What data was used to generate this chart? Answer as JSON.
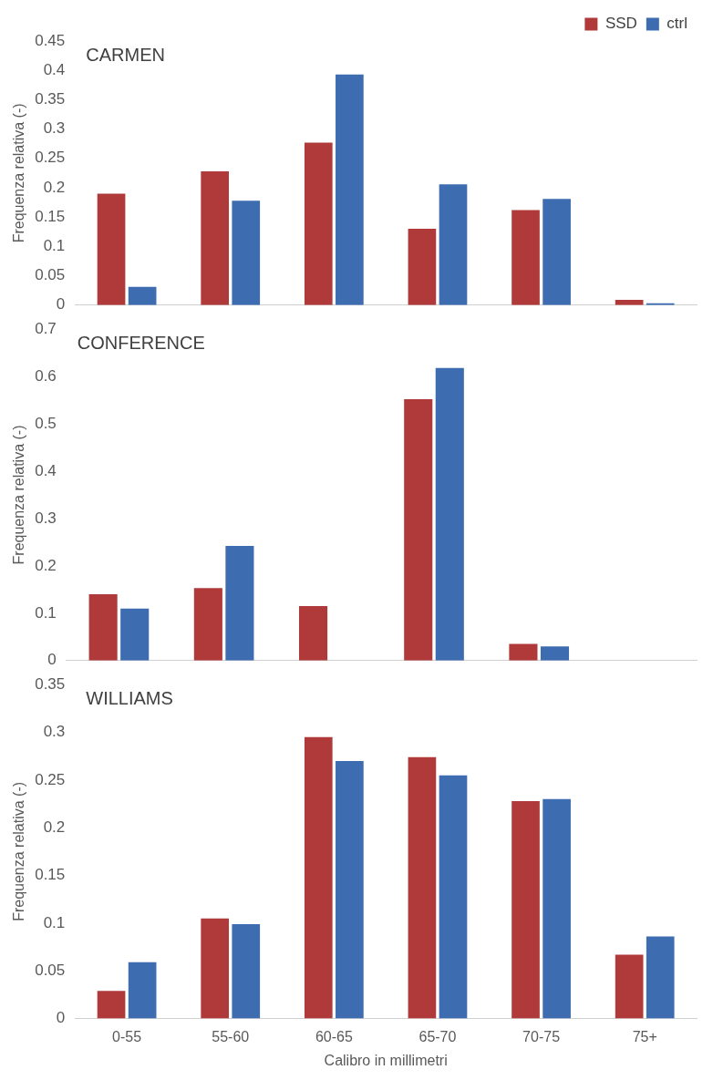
{
  "chart_data": [
    {
      "type": "bar",
      "title": "CARMEN",
      "categories": [
        null,
        null,
        null,
        null,
        null,
        null
      ],
      "series": [
        {
          "name": "SSD",
          "color": "#b03a3a",
          "values": [
            0.19,
            0.228,
            0.277,
            0.13,
            0.162,
            0.009
          ]
        },
        {
          "name": "ctrl",
          "color": "#3d6db0",
          "values": [
            0.031,
            0.178,
            0.393,
            0.206,
            0.181,
            0.003
          ]
        }
      ],
      "ylabel": "Frequenza relativa (-)",
      "ylim": [
        0,
        0.45
      ],
      "yticks": [
        0,
        0.05,
        0.1,
        0.15,
        0.2,
        0.25,
        0.3,
        0.35,
        0.4,
        0.45
      ],
      "legend": "top right",
      "tick_labels": "y"
    },
    {
      "type": "bar",
      "title": "CONFERENCE",
      "categories": [
        null,
        null,
        null,
        null,
        null,
        null
      ],
      "series": [
        {
          "color": "#b03a3a",
          "values": [
            0.14,
            0.153,
            0.115,
            0.552,
            0.035,
            0
          ]
        },
        {
          "color": "#3d6db0",
          "values": [
            0.11,
            0.242,
            0,
            0.618,
            0.03,
            0
          ]
        }
      ],
      "ylabel": "Frequenza relativa (-)",
      "ylim": [
        0,
        0.7
      ],
      "yticks": [
        0,
        0.1,
        0.2,
        0.3,
        0.4,
        0.5,
        0.6,
        0.7
      ],
      "tick_labels": "y"
    },
    {
      "type": "bar",
      "title": "WILLIAMS",
      "categories": [
        "0-55",
        "55-60",
        "60-65",
        "65-70",
        "70-75",
        "75+"
      ],
      "series": [
        {
          "color": "#b03a3a",
          "values": [
            0.029,
            0.105,
            0.295,
            0.274,
            0.228,
            0.067
          ]
        },
        {
          "color": "#3d6db0",
          "values": [
            0.059,
            0.099,
            0.27,
            0.255,
            0.23,
            0.086
          ]
        }
      ],
      "xlabel": "Calibro in millimetri",
      "ylabel": "Frequenza relativa (-)",
      "ylim": [
        0,
        0.35
      ],
      "yticks": [
        0,
        0.05,
        0.1,
        0.15,
        0.2,
        0.25,
        0.3,
        0.35
      ]
    }
  ]
}
